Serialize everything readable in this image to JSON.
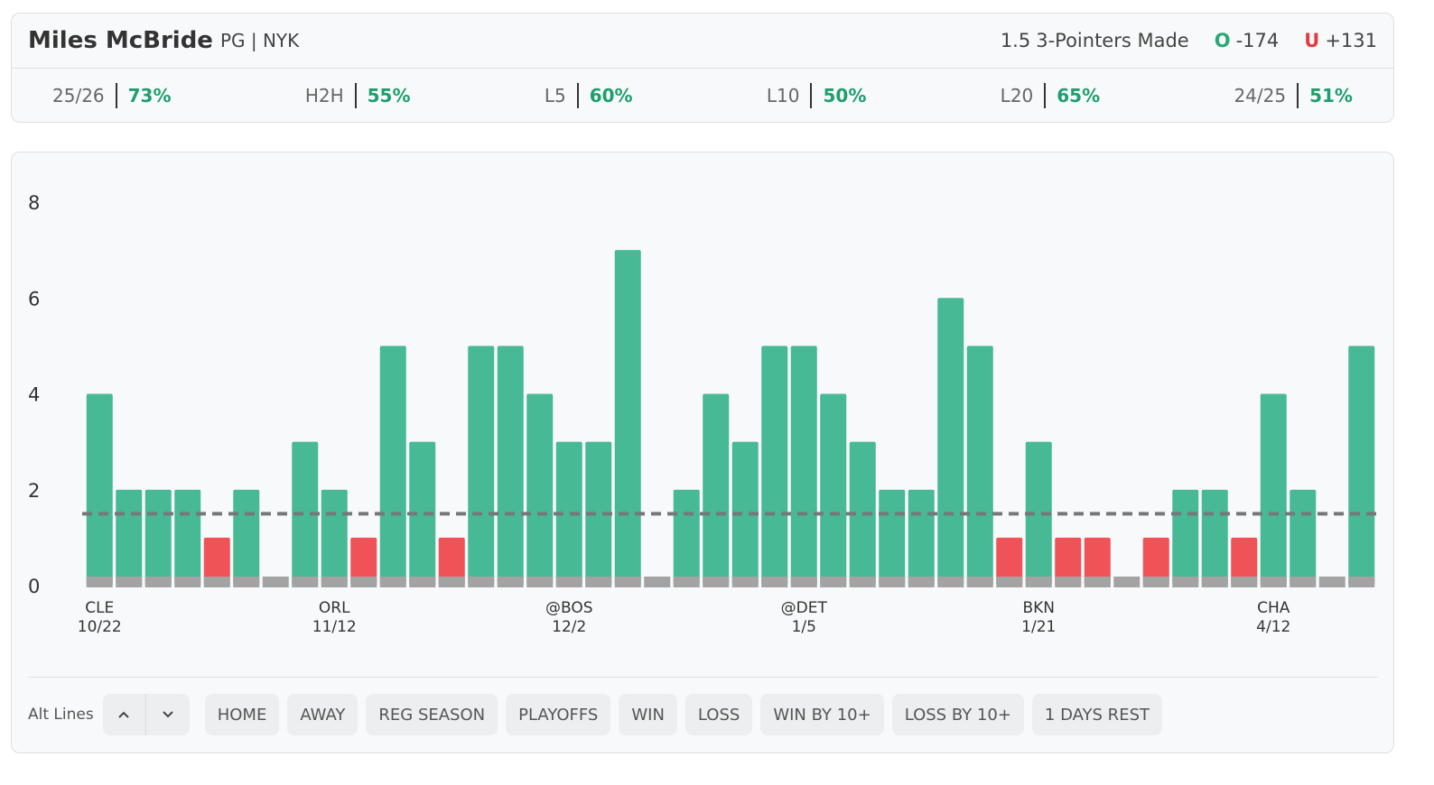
{
  "header": {
    "player": "Miles McBride",
    "meta": "PG | NYK",
    "stat": "3-Pointers Made",
    "over_label": "O",
    "over_odds": "-174",
    "under_label": "U",
    "under_odds": "+131"
  },
  "splits": [
    {
      "label": "25/26",
      "value": "73%"
    },
    {
      "label": "H2H",
      "value": "55%"
    },
    {
      "label": "L5",
      "value": "60%"
    },
    {
      "label": "L10",
      "value": "50%"
    },
    {
      "label": "L20",
      "value": "65%"
    },
    {
      "label": "24/25",
      "value": "51%"
    }
  ],
  "chart_data": {
    "type": "bar",
    "threshold": 1.5,
    "opponents": [
      "CLE",
      null,
      null,
      null,
      null,
      null,
      null,
      null,
      "ORL",
      null,
      null,
      null,
      null,
      null,
      null,
      null,
      "@BOS",
      null,
      null,
      null,
      null,
      null,
      null,
      null,
      "@DET",
      null,
      null,
      null,
      null,
      null,
      null,
      null,
      "BKN",
      null,
      null,
      null,
      null,
      null,
      null,
      null,
      "CHA",
      null,
      null,
      null
    ],
    "dates": [
      "10/22",
      null,
      null,
      null,
      null,
      null,
      null,
      null,
      "11/12",
      null,
      null,
      null,
      null,
      null,
      null,
      null,
      "12/2",
      null,
      null,
      null,
      null,
      null,
      null,
      null,
      "1/5",
      null,
      null,
      null,
      null,
      null,
      null,
      null,
      "1/21",
      null,
      null,
      null,
      null,
      null,
      null,
      null,
      "4/12",
      null,
      null,
      null
    ],
    "values": [
      4,
      2,
      2,
      2,
      1,
      2,
      0,
      3,
      2,
      1,
      5,
      3,
      1,
      5,
      5,
      4,
      3,
      3,
      7,
      0,
      2,
      4,
      3,
      5,
      5,
      4,
      3,
      2,
      2,
      6,
      5,
      1,
      3,
      1,
      1,
      0,
      1,
      2,
      2,
      1,
      4,
      2,
      0,
      5
    ],
    "over_color": "#47b994",
    "under_color": "#ef5257",
    "ylim": [
      0,
      8
    ],
    "yticks": [
      0,
      2,
      4,
      6,
      8
    ]
  },
  "filters": {
    "label": "Alt Lines",
    "buttons": [
      "HOME",
      "AWAY",
      "REG SEASON",
      "PLAYOFFS",
      "WIN",
      "LOSS",
      "WIN BY 10+",
      "LOSS BY 10+",
      "1 DAYS REST"
    ]
  }
}
